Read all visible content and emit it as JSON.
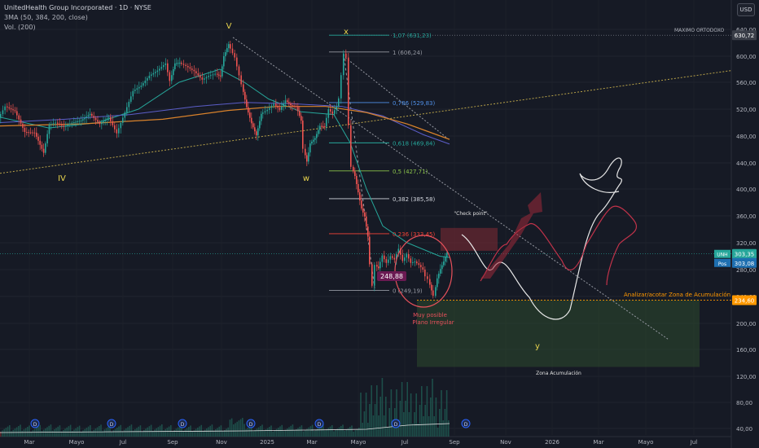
{
  "header": {
    "title": "UnitedHealth Group Incorporated · 1D · NYSE",
    "ma_label": "3MA (50, 384, 200, close)",
    "vol_label": "Vol. (200)"
  },
  "currency_button": "USD",
  "chart_data": {
    "type": "candlestick",
    "ylim": [
      40,
      660
    ],
    "y_ticks": [
      "40,00",
      "80,00",
      "120,00",
      "160,00",
      "200,00",
      "240,00",
      "280,00",
      "320,00",
      "360,00",
      "400,00",
      "440,00",
      "480,00",
      "520,00",
      "560,00",
      "600,00",
      "640,00"
    ],
    "x_ticks": [
      "Mar",
      "Mayo",
      "Jul",
      "Sep",
      "Nov",
      "2025",
      "Mar",
      "Mayo",
      "Jul",
      "Sep",
      "Nov",
      "2026",
      "Mar",
      "Mayo",
      "Jul"
    ],
    "price_path": [
      [
        0,
        507
      ],
      [
        8,
        524
      ],
      [
        20,
        517
      ],
      [
        32,
        486
      ],
      [
        44,
        485
      ],
      [
        55,
        455
      ],
      [
        62,
        497
      ],
      [
        70,
        500
      ],
      [
        80,
        494
      ],
      [
        90,
        500
      ],
      [
        101,
        503
      ],
      [
        112,
        513
      ],
      [
        124,
        498
      ],
      [
        135,
        508
      ],
      [
        145,
        484
      ],
      [
        155,
        515
      ],
      [
        165,
        547
      ],
      [
        175,
        555
      ],
      [
        185,
        570
      ],
      [
        195,
        578
      ],
      [
        205,
        589
      ],
      [
        210,
        562
      ],
      [
        216,
        589
      ],
      [
        222,
        590
      ],
      [
        230,
        585
      ],
      [
        240,
        577
      ],
      [
        250,
        564
      ],
      [
        258,
        570
      ],
      [
        266,
        573
      ],
      [
        272,
        569
      ],
      [
        276,
        600
      ],
      [
        282,
        618
      ],
      [
        290,
        598
      ],
      [
        298,
        557
      ],
      [
        304,
        523
      ],
      [
        310,
        499
      ],
      [
        316,
        481
      ],
      [
        322,
        513
      ],
      [
        330,
        519
      ],
      [
        338,
        528
      ],
      [
        345,
        519
      ],
      [
        352,
        533
      ],
      [
        358,
        526
      ],
      [
        365,
        524
      ],
      [
        371,
        503
      ],
      [
        374,
        461
      ],
      [
        378,
        442
      ],
      [
        382,
        469
      ],
      [
        388,
        477
      ],
      [
        394,
        495
      ],
      [
        400,
        494
      ],
      [
        405,
        520
      ],
      [
        410,
        513
      ],
      [
        415,
        524
      ],
      [
        418,
        536
      ],
      [
        421,
        571
      ],
      [
        424,
        604
      ],
      [
        427,
        598
      ],
      [
        430,
        496
      ],
      [
        433,
        434
      ],
      [
        437,
        420
      ],
      [
        441,
        395
      ],
      [
        445,
        371
      ],
      [
        449,
        359
      ],
      [
        453,
        329
      ],
      [
        456,
        288
      ],
      [
        459,
        256
      ],
      [
        462,
        287
      ],
      [
        466,
        282
      ],
      [
        471,
        301
      ],
      [
        476,
        290
      ],
      [
        481,
        300
      ],
      [
        486,
        295
      ],
      [
        491,
        311
      ],
      [
        496,
        293
      ],
      [
        501,
        303
      ],
      [
        506,
        290
      ],
      [
        511,
        292
      ],
      [
        516,
        287
      ],
      [
        521,
        280
      ],
      [
        524,
        270
      ],
      [
        527,
        266
      ],
      [
        531,
        249
      ],
      [
        534,
        241
      ],
      [
        538,
        267
      ],
      [
        542,
        281
      ],
      [
        546,
        292
      ],
      [
        550,
        305
      ]
    ],
    "volume_bars_sample": "hidden (approximate)",
    "current_price": "303,35",
    "position_price": "303,08",
    "zone_price": "234,60",
    "max_price": "630,72",
    "low_label": "248,88",
    "fib_levels": [
      {
        "label": "1,07 (631,23)",
        "value": 631.23,
        "color": "#26a69a"
      },
      {
        "label": "1 (606,24)",
        "value": 606.24,
        "color": "#9598a1"
      },
      {
        "label": "0,786 (529,83)",
        "value": 529.83,
        "color": "#4f8fe6"
      },
      {
        "label": "0,618 (469,84)",
        "value": 469.84,
        "color": "#26a69a"
      },
      {
        "label": "0,5 (427,71)",
        "value": 427.71,
        "color": "#8bc34a"
      },
      {
        "label": "0,382 (385,58)",
        "value": 385.58,
        "color": "#d1d4dc"
      },
      {
        "label": "0,236 (333,45)",
        "value": 333.45,
        "color": "#f44336"
      },
      {
        "label": "0 (249,19)",
        "value": 249.19,
        "color": "#9598a1"
      }
    ],
    "wave_labels": [
      "IV",
      "V",
      "w",
      "x",
      "y"
    ],
    "annotations": {
      "checkpoint": "\"Check point\"",
      "maximo": "MAXIMO ORTODOXO",
      "analizar": "Analizar/acotar Zona de Acumulación",
      "zona": "Zona Acumulación",
      "muy_posible_1": "Muy posible",
      "muy_posible_2": "Plano Irregular",
      "tag_unh": "UNH",
      "tag_pos": "Pos"
    }
  }
}
